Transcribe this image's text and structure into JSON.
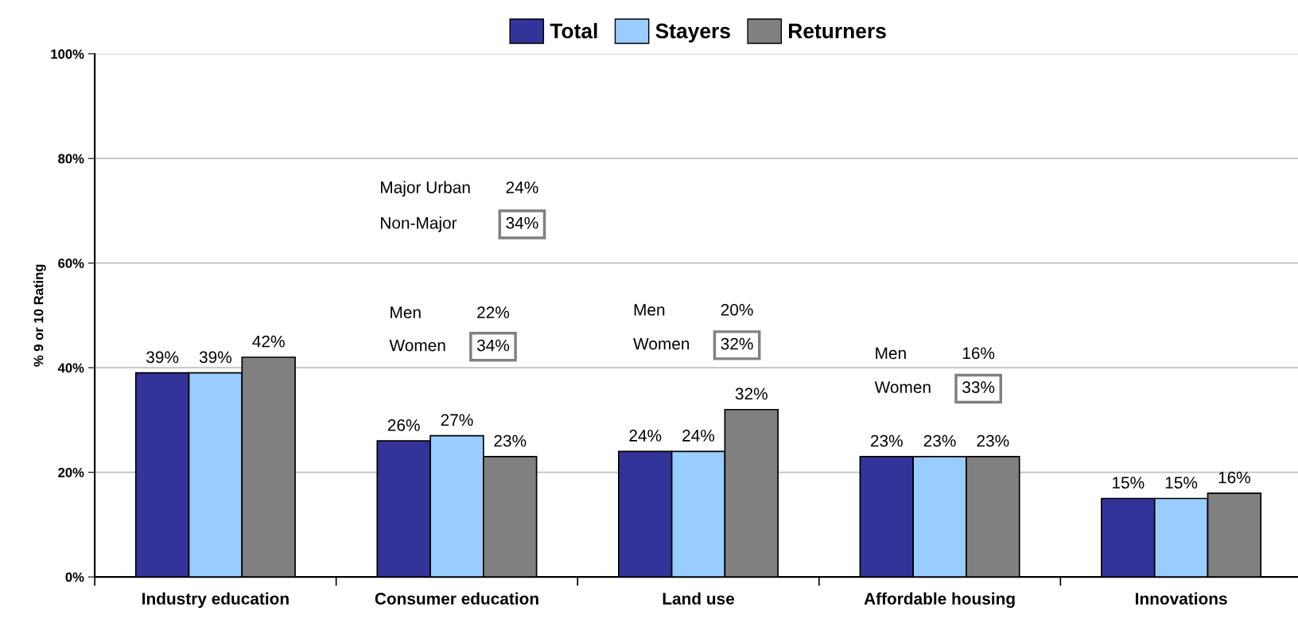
{
  "chart_data": {
    "type": "bar",
    "ylabel": "% 9 or 10 Rating",
    "categories": [
      "Industry education",
      "Consumer education",
      "Land use",
      "Affordable housing",
      "Innovations"
    ],
    "series": [
      {
        "name": "Total",
        "color": "#333399",
        "values": [
          39,
          26,
          24,
          23,
          15
        ]
      },
      {
        "name": "Stayers",
        "color": "#99ccff",
        "values": [
          39,
          27,
          24,
          23,
          15
        ]
      },
      {
        "name": "Returners",
        "color": "#808080",
        "values": [
          42,
          23,
          32,
          23,
          16
        ]
      }
    ],
    "ylim": [
      0,
      100
    ],
    "yticks": [
      {
        "value": 0,
        "label": "0%"
      },
      {
        "value": 20,
        "label": "20%"
      },
      {
        "value": 40,
        "label": "40%"
      },
      {
        "value": 60,
        "label": "60%"
      },
      {
        "value": 80,
        "label": "80%"
      },
      {
        "value": 100,
        "label": "100%"
      }
    ],
    "value_labels": [
      [
        "39%",
        "26%",
        "24%",
        "23%",
        "15%"
      ],
      [
        "39%",
        "27%",
        "24%",
        "23%",
        "15%"
      ],
      [
        "42%",
        "23%",
        "32%",
        "23%",
        "16%"
      ]
    ],
    "grid": "y",
    "legend": "top",
    "annotations": [
      "Major Urban",
      "24%",
      "Non-Major",
      "34%",
      "Men",
      "22%",
      "Women",
      "34%",
      "Men",
      "20%",
      "Women",
      "32%",
      "Men",
      "16%",
      "Women",
      "33%"
    ]
  }
}
